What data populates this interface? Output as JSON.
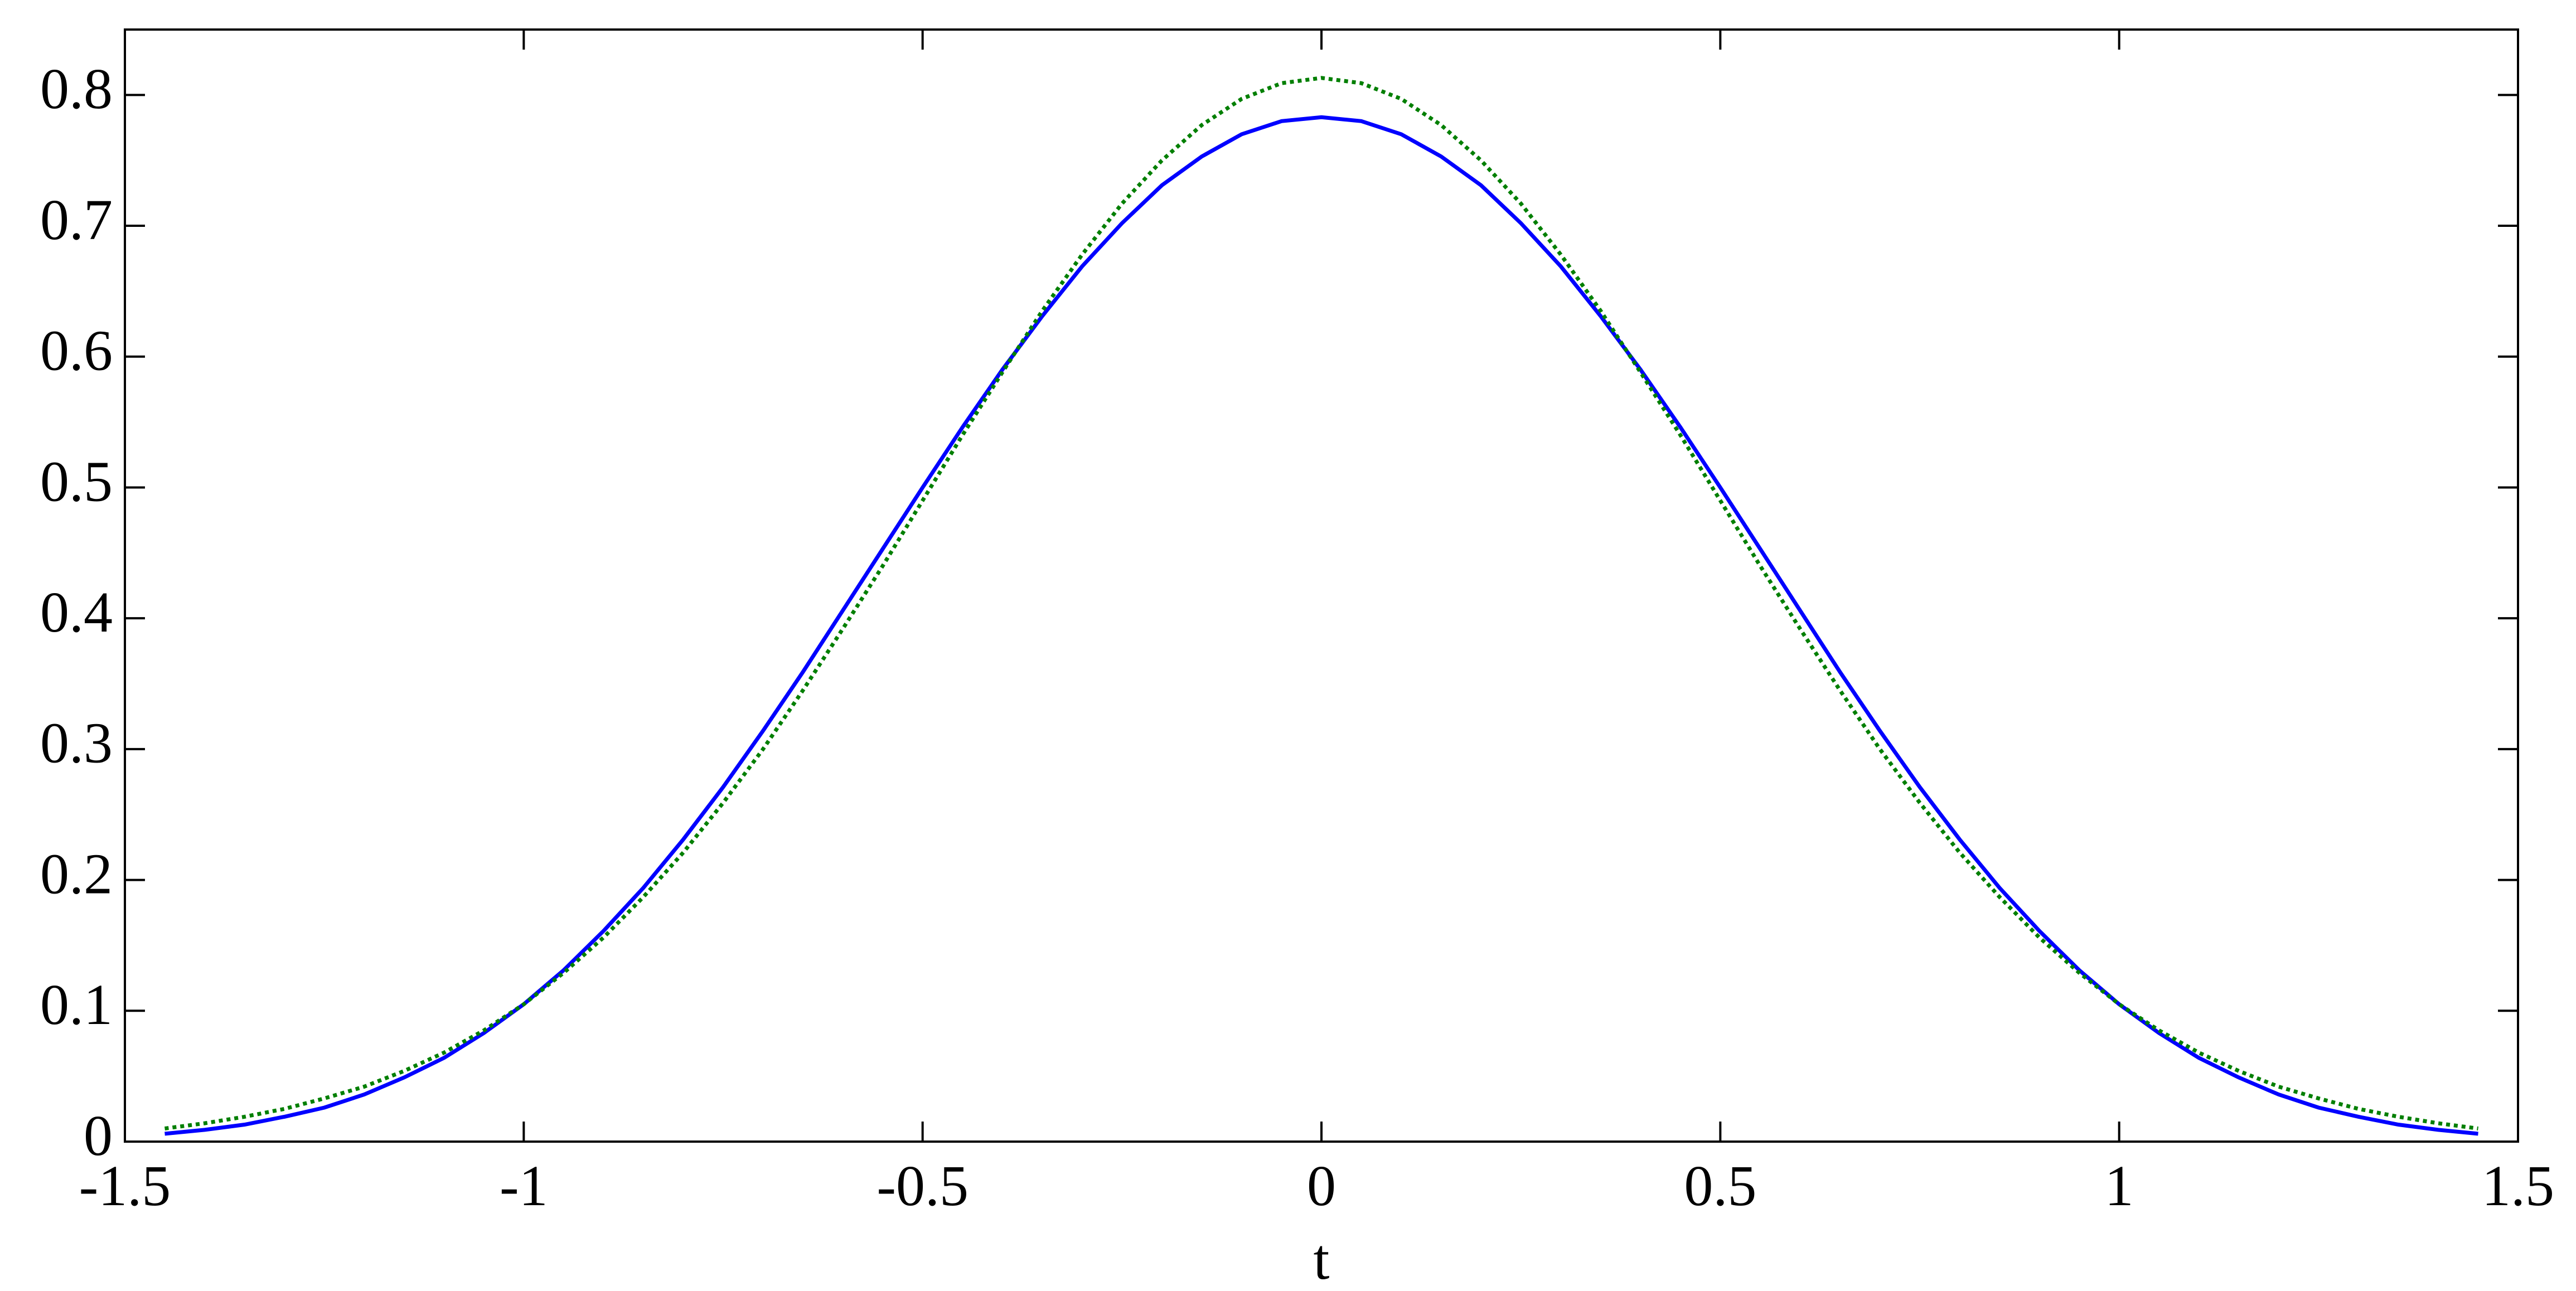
{
  "chart_data": {
    "type": "line",
    "xlabel": "t",
    "x": [
      -1.45,
      -1.4,
      -1.35,
      -1.3,
      -1.25,
      -1.2,
      -1.15,
      -1.1,
      -1.05,
      -1,
      -0.95,
      -0.9,
      -0.85,
      -0.8,
      -0.75,
      -0.7,
      -0.65,
      -0.6,
      -0.55,
      -0.5,
      -0.45,
      -0.4,
      -0.35,
      -0.3,
      -0.25,
      -0.2,
      -0.15,
      -0.1,
      -0.05,
      0,
      0.05,
      0.1,
      0.15,
      0.2,
      0.25,
      0.3,
      0.35,
      0.4,
      0.45,
      0.5,
      0.55,
      0.6,
      0.65,
      0.7,
      0.75,
      0.8,
      0.85,
      0.9,
      0.95,
      1,
      1.05,
      1.1,
      1.15,
      1.2,
      1.25,
      1.3,
      1.35,
      1.4,
      1.45
    ],
    "series": [
      {
        "color": "#0000ff",
        "linestyle": "solid",
        "values": [
          0.006,
          0.009,
          0.013,
          0.019,
          0.026,
          0.036,
          0.049,
          0.064,
          0.083,
          0.105,
          0.131,
          0.161,
          0.194,
          0.231,
          0.271,
          0.314,
          0.359,
          0.406,
          0.453,
          0.5,
          0.546,
          0.59,
          0.631,
          0.669,
          0.702,
          0.731,
          0.753,
          0.77,
          0.78,
          0.783,
          0.78,
          0.77,
          0.753,
          0.731,
          0.702,
          0.669,
          0.631,
          0.59,
          0.546,
          0.5,
          0.453,
          0.406,
          0.359,
          0.314,
          0.271,
          0.231,
          0.194,
          0.161,
          0.131,
          0.105,
          0.083,
          0.064,
          0.049,
          0.036,
          0.026,
          0.019,
          0.013,
          0.009,
          0.006
        ]
      },
      {
        "color": "#007f00",
        "linestyle": "dotted",
        "values": [
          0.01,
          0.014,
          0.019,
          0.025,
          0.033,
          0.042,
          0.054,
          0.068,
          0.085,
          0.105,
          0.129,
          0.156,
          0.187,
          0.221,
          0.259,
          0.3,
          0.345,
          0.392,
          0.44,
          0.49,
          0.54,
          0.588,
          0.635,
          0.678,
          0.717,
          0.75,
          0.777,
          0.797,
          0.809,
          0.813,
          0.809,
          0.797,
          0.777,
          0.75,
          0.717,
          0.678,
          0.635,
          0.588,
          0.54,
          0.49,
          0.44,
          0.392,
          0.345,
          0.3,
          0.259,
          0.221,
          0.187,
          0.156,
          0.129,
          0.105,
          0.085,
          0.068,
          0.054,
          0.042,
          0.033,
          0.025,
          0.019,
          0.014,
          0.01
        ]
      }
    ],
    "xlim": [
      -1.5,
      1.5
    ],
    "xticks": [
      -1.5,
      -1,
      -0.5,
      0,
      0.5,
      1,
      1.5
    ],
    "ylim": [
      0,
      0.85
    ],
    "yticks": [
      0,
      0.1,
      0.2,
      0.3,
      0.4,
      0.5,
      0.6,
      0.7,
      0.8
    ]
  }
}
